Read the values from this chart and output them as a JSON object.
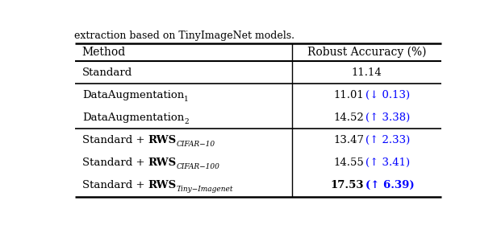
{
  "caption": "extraction based on TinyImageNet models.",
  "col_headers": [
    "Method",
    "Robust Accuracy (%)"
  ],
  "rows": [
    {
      "method": "Standard",
      "method_bold_part": "",
      "method_sub": "",
      "value": "11.14",
      "value_bold": false,
      "delta": "",
      "delta_color": "blue"
    },
    {
      "method": "DataAugmentation",
      "method_bold_part": "",
      "method_sub": "1",
      "value": "11.01",
      "value_bold": false,
      "delta": "(↓ 0.13)",
      "delta_color": "blue"
    },
    {
      "method": "DataAugmentation",
      "method_bold_part": "",
      "method_sub": "2",
      "value": "14.52",
      "value_bold": false,
      "delta": "(↑ 3.38)",
      "delta_color": "blue"
    },
    {
      "method": "Standard + ",
      "method_bold_part": "RWS",
      "method_sub": "CIFAR−10",
      "value": "13.47",
      "value_bold": false,
      "delta": "(↑ 2.33)",
      "delta_color": "blue"
    },
    {
      "method": "Standard + ",
      "method_bold_part": "RWS",
      "method_sub": "CIFAR−100",
      "value": "14.55",
      "value_bold": false,
      "delta": "(↑ 3.41)",
      "delta_color": "blue"
    },
    {
      "method": "Standard + ",
      "method_bold_part": "RWS",
      "method_sub": "Tiny−Imagenet",
      "value": "17.53",
      "value_bold": true,
      "delta": "(↑ 6.39)",
      "delta_color": "blue"
    }
  ],
  "group_separators_after": [
    0,
    2
  ],
  "bg_color": "#ffffff",
  "text_color": "#000000",
  "blue_color": "#0000ff"
}
